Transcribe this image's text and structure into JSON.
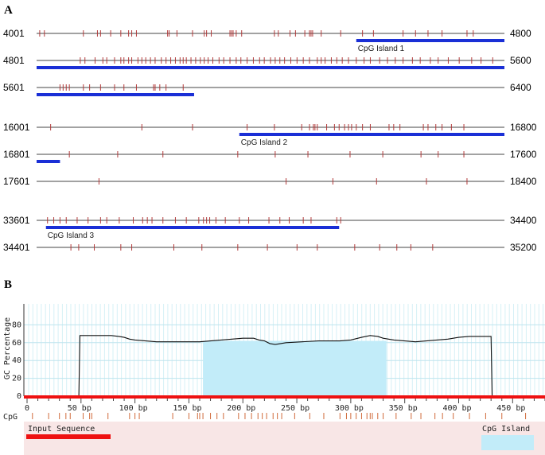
{
  "panel_a": {
    "label": "A",
    "rows": [
      {
        "start": "4001",
        "end": "4800",
        "sites": [
          4,
          10,
          60,
          78,
          82,
          95,
          108,
          118,
          122,
          128,
          168,
          170,
          180,
          200,
          215,
          218,
          224,
          248,
          250,
          252,
          256,
          263,
          305,
          310,
          325,
          332,
          344,
          350,
          352,
          354,
          365,
          390,
          418,
          432,
          470,
          486,
          502,
          520,
          552,
          560
        ],
        "islands": [
          {
            "from": 410,
            "to": 600,
            "label": "CpG Island 1"
          }
        ]
      },
      {
        "start": "4801",
        "end": "5600",
        "sites": [
          56,
          62,
          75,
          85,
          90,
          100,
          108,
          112,
          118,
          122,
          130,
          135,
          140,
          146,
          152,
          160,
          166,
          172,
          178,
          184,
          188,
          192,
          198,
          204,
          210,
          215,
          220,
          226,
          234,
          240,
          248,
          256,
          262,
          270,
          278,
          286,
          292,
          300,
          306,
          312,
          318,
          326,
          334,
          342,
          350,
          360,
          365,
          370,
          378,
          385,
          392,
          400,
          410,
          420,
          428,
          440,
          450,
          460,
          470,
          482,
          492,
          505,
          515,
          528,
          542,
          558,
          570,
          585
        ],
        "islands": [
          {
            "from": 0,
            "to": 600,
            "label": ""
          }
        ]
      },
      {
        "start": "5601",
        "end": "6400",
        "sites": [
          30,
          34,
          38,
          42,
          60,
          68,
          82,
          100,
          112,
          128,
          150,
          152,
          158,
          166,
          188
        ],
        "islands": [
          {
            "from": 0,
            "to": 202,
            "label": ""
          }
        ]
      },
      {
        "start": "16001",
        "end": "16800",
        "sites": [
          18,
          135,
          200,
          270,
          305,
          340,
          350,
          355,
          357,
          360,
          372,
          382,
          388,
          395,
          400,
          404,
          410,
          418,
          428,
          452,
          458,
          466,
          496,
          502,
          512,
          520,
          532,
          548
        ],
        "islands": [
          {
            "from": 260,
            "to": 600,
            "label": "CpG Island 2"
          }
        ]
      },
      {
        "start": "16801",
        "end": "17600",
        "sites": [
          42,
          104,
          162,
          258,
          306,
          348,
          402,
          444,
          493,
          515,
          548
        ],
        "islands": [
          {
            "from": 0,
            "to": 30,
            "label": ""
          }
        ]
      },
      {
        "start": "17601",
        "end": "18400",
        "sites": [
          80,
          320,
          380,
          436,
          500,
          552
        ],
        "islands": []
      },
      {
        "start": "33601",
        "end": "34400",
        "sites": [
          14,
          22,
          30,
          38,
          52,
          66,
          82,
          90,
          106,
          124,
          136,
          142,
          148,
          162,
          178,
          192,
          208,
          214,
          218,
          222,
          230,
          242,
          260,
          272,
          298,
          312,
          324,
          342,
          352,
          385,
          390
        ],
        "islands": [
          {
            "from": 12,
            "to": 388,
            "label": "CpG Island 3"
          }
        ]
      },
      {
        "start": "34401",
        "end": "35200",
        "sites": [
          44,
          54,
          74,
          108,
          122,
          176,
          212,
          258,
          296,
          334,
          360,
          408,
          440,
          462,
          480,
          508
        ]
      }
    ]
  },
  "panel_b": {
    "label": "B",
    "ylabel": "GC Percentage",
    "xlabel_suffix": "bp",
    "y_ticks": [
      "0",
      "20",
      "40",
      "60",
      "80"
    ],
    "x_ticks": [
      "0",
      "50",
      "100",
      "150",
      "200",
      "250",
      "300",
      "350",
      "400",
      "450"
    ],
    "xlim": [
      0,
      480
    ],
    "ylim": [
      0,
      100
    ],
    "gc_profile": [
      [
        0,
        0
      ],
      [
        48,
        0
      ],
      [
        49,
        68
      ],
      [
        60,
        68
      ],
      [
        78,
        68
      ],
      [
        85,
        67
      ],
      [
        90,
        66
      ],
      [
        95,
        64
      ],
      [
        100,
        63
      ],
      [
        110,
        62
      ],
      [
        120,
        61
      ],
      [
        140,
        61
      ],
      [
        150,
        61
      ],
      [
        160,
        61
      ],
      [
        170,
        62
      ],
      [
        180,
        63
      ],
      [
        190,
        64
      ],
      [
        200,
        65
      ],
      [
        210,
        65
      ],
      [
        215,
        63
      ],
      [
        220,
        62
      ],
      [
        225,
        59
      ],
      [
        230,
        58
      ],
      [
        235,
        59
      ],
      [
        240,
        60
      ],
      [
        255,
        61
      ],
      [
        270,
        62
      ],
      [
        290,
        62
      ],
      [
        300,
        63
      ],
      [
        310,
        66
      ],
      [
        318,
        68
      ],
      [
        325,
        67
      ],
      [
        330,
        65
      ],
      [
        340,
        63
      ],
      [
        350,
        62
      ],
      [
        360,
        61
      ],
      [
        370,
        62
      ],
      [
        380,
        63
      ],
      [
        390,
        64
      ],
      [
        400,
        66
      ],
      [
        410,
        67
      ],
      [
        420,
        67
      ],
      [
        430,
        67
      ],
      [
        431,
        0
      ],
      [
        480,
        0
      ]
    ],
    "island": {
      "from": 163,
      "to": 333,
      "height": 62
    },
    "cpg_label": "CpG",
    "cpg_sites": [
      5,
      20,
      30,
      36,
      40,
      52,
      58,
      60,
      75,
      95,
      100,
      104,
      135,
      150,
      158,
      160,
      163,
      170,
      176,
      182,
      196,
      202,
      208,
      214,
      218,
      222,
      228,
      232,
      236,
      248,
      262,
      275,
      290,
      296,
      300,
      305,
      310,
      315,
      318,
      320,
      325,
      330,
      342,
      356,
      365,
      378,
      385,
      395,
      410,
      425,
      440,
      462
    ],
    "legend": {
      "input": "Input Sequence",
      "island": "CpG Island"
    },
    "colors": {
      "input": "#ee1111",
      "island": "#c2ecf9",
      "band": "#f8e6e6"
    }
  }
}
